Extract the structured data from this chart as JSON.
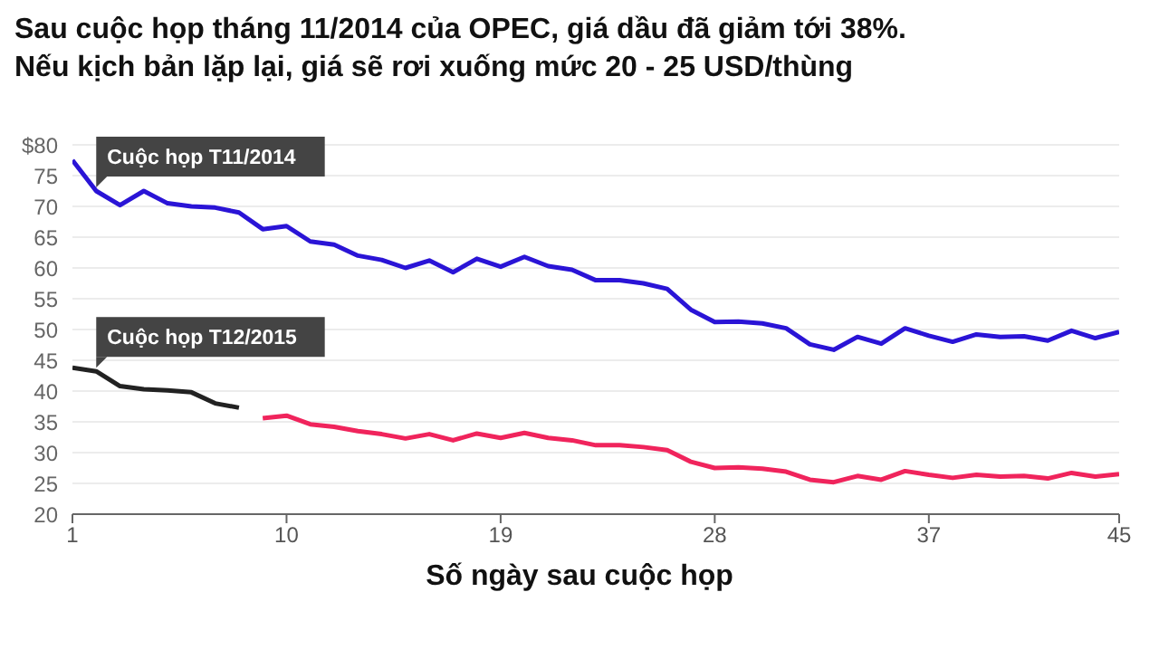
{
  "chart_data": {
    "type": "line",
    "title": "Sau cuộc họp tháng 11/2014 của OPEC, giá dầu đã giảm tới 38%.\nNếu kịch bản lặp lại, giá sẽ rơi xuống mức 20 - 25 USD/thùng",
    "xlabel": "Số ngày sau cuộc họp",
    "series": [
      {
        "name": "Cuộc họp T11/2014",
        "color": "#2a14d6",
        "x": [
          1,
          2,
          3,
          4,
          5,
          6,
          7,
          8,
          9,
          10,
          11,
          12,
          13,
          14,
          15,
          16,
          17,
          18,
          19,
          20,
          21,
          22,
          23,
          24,
          25,
          26,
          27,
          28,
          29,
          30,
          31,
          32,
          33,
          34,
          35,
          36,
          37,
          38,
          39,
          40,
          41,
          42,
          43,
          44,
          45
        ],
        "values": [
          77.5,
          72.5,
          70.2,
          72.5,
          70.5,
          70,
          69.8,
          69,
          66.3,
          66.8,
          64.3,
          63.8,
          62,
          61.3,
          60,
          61.2,
          59.3,
          61.5,
          60.2,
          61.8,
          60.3,
          59.7,
          58,
          58,
          57.5,
          56.6,
          53.2,
          51.2,
          51.3,
          51,
          50.2,
          47.6,
          46.7,
          48.8,
          47.7,
          50.2,
          49,
          48,
          49.2,
          48.8,
          48.9,
          48.2,
          49.8,
          48.6,
          49.6
        ]
      },
      {
        "name": "Cuộc họp T12/2015",
        "color": "#222222",
        "x": [
          1,
          2,
          3,
          4,
          5,
          6,
          7,
          8
        ],
        "values": [
          43.8,
          43.2,
          40.8,
          40.3,
          40.1,
          39.8,
          38,
          37.3
        ]
      },
      {
        "color": "#f0245c",
        "x": [
          9,
          10,
          11,
          12,
          13,
          14,
          15,
          16,
          17,
          18,
          19,
          20,
          21,
          22,
          23,
          24,
          25,
          26,
          27,
          28,
          29,
          30,
          31,
          32,
          33,
          34,
          35,
          36,
          37,
          38,
          39,
          40,
          41,
          42,
          43,
          44,
          45
        ],
        "values": [
          35.6,
          36,
          34.6,
          34.2,
          33.5,
          33,
          32.3,
          33,
          32,
          33.1,
          32.4,
          33.2,
          32.4,
          32,
          31.2,
          31.2,
          30.9,
          30.4,
          28.5,
          27.5,
          27.6,
          27.4,
          26.9,
          25.6,
          25.2,
          26.2,
          25.6,
          27,
          26.4,
          25.9,
          26.4,
          26.1,
          26.2,
          25.8,
          26.7,
          26.1,
          26.5
        ]
      }
    ],
    "xlim": [
      1,
      45
    ],
    "xticks": [
      1,
      10,
      19,
      28,
      37,
      45
    ],
    "ylim": [
      20,
      80
    ],
    "yticks": [
      20,
      25,
      30,
      35,
      40,
      45,
      50,
      55,
      60,
      65,
      70,
      75,
      {
        "value": 80,
        "label": "$80"
      }
    ],
    "grid": "y",
    "legend": false,
    "marker": "none",
    "line_style": "solid"
  }
}
